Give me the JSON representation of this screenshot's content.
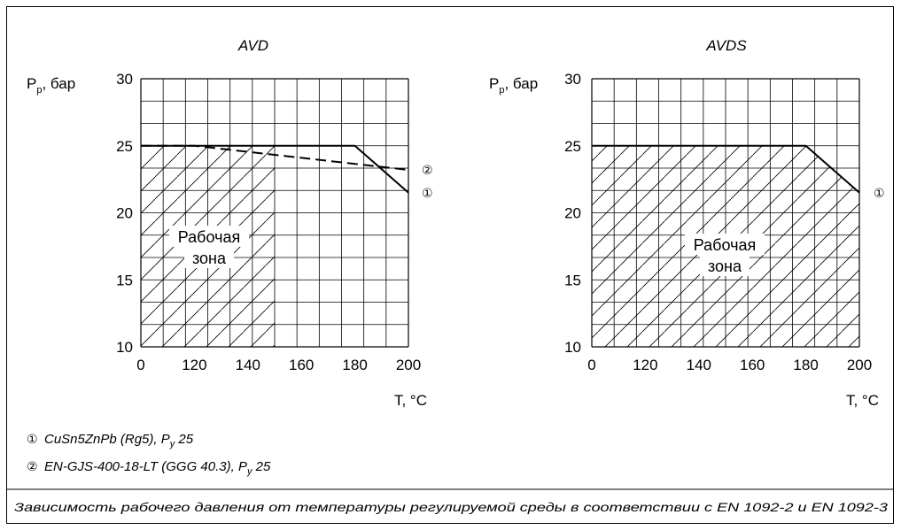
{
  "chart_data": [
    {
      "type": "line",
      "title": "AVD",
      "ylabel": "Pp, бар",
      "xlabel": "T, °C",
      "x_tick_labels": [
        "0",
        "120",
        "140",
        "160",
        "180",
        "200"
      ],
      "y_tick_labels": [
        "10",
        "15",
        "20",
        "25",
        "30"
      ],
      "ylim": [
        10,
        30
      ],
      "xlim": [
        100,
        200
      ],
      "grid": true,
      "zone_label": [
        "Рабочая",
        "зона"
      ],
      "hatched_zone": {
        "x": [
          100,
          150
        ],
        "y": [
          10,
          25
        ]
      },
      "series": [
        {
          "marker": "①",
          "style": "solid",
          "x": [
            100,
            180,
            200
          ],
          "y": [
            25,
            25,
            21.5
          ]
        },
        {
          "marker": "②",
          "style": "dashed",
          "x": [
            100,
            120,
            200
          ],
          "y": [
            25,
            25,
            23.2
          ]
        }
      ]
    },
    {
      "type": "line",
      "title": "AVDS",
      "ylabel": "Pp, бар",
      "xlabel": "T, °C",
      "x_tick_labels": [
        "0",
        "120",
        "140",
        "160",
        "180",
        "200"
      ],
      "y_tick_labels": [
        "10",
        "15",
        "20",
        "25",
        "30"
      ],
      "ylim": [
        10,
        30
      ],
      "xlim": [
        100,
        200
      ],
      "grid": true,
      "zone_label": [
        "Рабочая",
        "зона"
      ],
      "hatched_zone": {
        "x": [
          100,
          200
        ],
        "y": [
          10,
          25
        ],
        "cut": [
          [
            180,
            25
          ],
          [
            200,
            21.5
          ]
        ]
      },
      "series": [
        {
          "marker": "①",
          "style": "solid",
          "x": [
            100,
            180,
            200
          ],
          "y": [
            25,
            25,
            21.5
          ]
        }
      ]
    }
  ],
  "legend": [
    {
      "marker": "①",
      "text": "CuSn5ZnPb (Rg5), P",
      "sub": "y",
      "tail": " 25"
    },
    {
      "marker": "②",
      "text": "EN-GJS-400-18-LT (GGG 40.3), P",
      "sub": "y",
      "tail": " 25"
    }
  ],
  "caption": "Зависимость рабочего давления от температуры регулируемой среды в соответствии с EN 1092-2 и EN 1092-3"
}
